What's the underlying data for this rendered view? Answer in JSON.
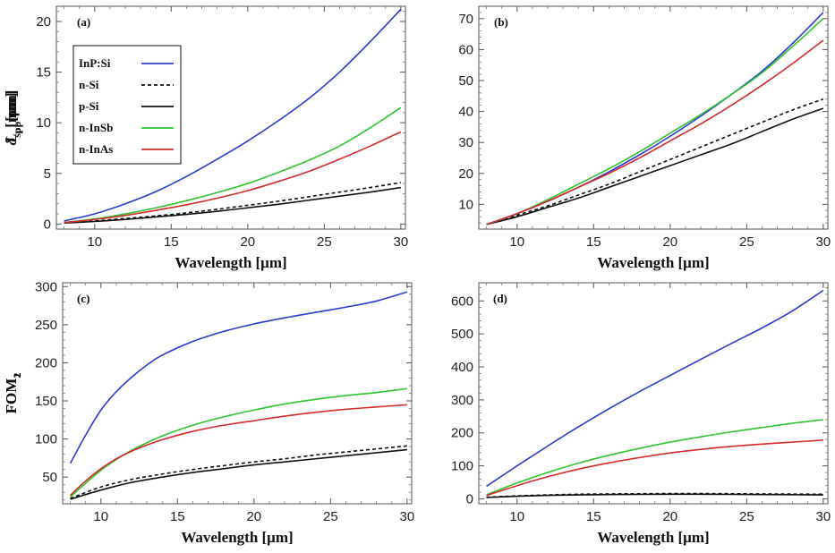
{
  "chart_data": [
    {
      "type": "line",
      "panel_label": "(a)",
      "ylabel": "L_p[mm]",
      "xlabel": "Wavelength [μm]",
      "xlim": [
        7.5,
        30.3
      ],
      "ylim": [
        -0.5,
        21.5
      ],
      "xticks": [
        10,
        15,
        20,
        25,
        30
      ],
      "yticks": [
        0,
        5,
        10,
        15,
        20
      ],
      "legend": "top-left",
      "series": [
        {
          "name": "InP:Si",
          "color": "#2b3bd0",
          "dash": false,
          "x": [
            8,
            10,
            12,
            14,
            16,
            18,
            20,
            22,
            24,
            26,
            28,
            30
          ],
          "y": [
            0.3,
            1.0,
            2.0,
            3.2,
            4.7,
            6.4,
            8.2,
            10.2,
            12.4,
            15.0,
            18.0,
            21.2
          ]
        },
        {
          "name": "n-Si",
          "color": "#111111",
          "dash": true,
          "x": [
            8,
            10,
            12,
            14,
            16,
            18,
            20,
            22,
            24,
            26,
            28,
            30
          ],
          "y": [
            0.1,
            0.3,
            0.55,
            0.8,
            1.1,
            1.45,
            1.85,
            2.25,
            2.7,
            3.15,
            3.6,
            4.1
          ]
        },
        {
          "name": "p-Si",
          "color": "#111111",
          "dash": false,
          "x": [
            8,
            10,
            12,
            14,
            16,
            18,
            20,
            22,
            24,
            26,
            28,
            30
          ],
          "y": [
            0.1,
            0.25,
            0.45,
            0.7,
            0.95,
            1.25,
            1.6,
            1.95,
            2.35,
            2.75,
            3.15,
            3.6
          ]
        },
        {
          "name": "n-InSb",
          "color": "#2ec42e",
          "dash": false,
          "x": [
            8,
            10,
            12,
            14,
            16,
            18,
            20,
            22,
            24,
            26,
            28,
            30
          ],
          "y": [
            0.15,
            0.5,
            1.0,
            1.6,
            2.3,
            3.1,
            4.0,
            5.1,
            6.3,
            7.7,
            9.5,
            11.5
          ]
        },
        {
          "name": "n-InAs",
          "color": "#d42a2a",
          "dash": false,
          "x": [
            8,
            10,
            12,
            14,
            16,
            18,
            20,
            22,
            24,
            26,
            28,
            30
          ],
          "y": [
            0.15,
            0.45,
            0.85,
            1.35,
            1.9,
            2.55,
            3.3,
            4.2,
            5.2,
            6.4,
            7.7,
            9.1
          ]
        }
      ]
    },
    {
      "type": "line",
      "panel_label": "(b)",
      "ylabel": "δ_spp[μm]",
      "xlabel": "Wavelength [μm]",
      "xlim": [
        7.5,
        30.3
      ],
      "ylim": [
        2,
        74
      ],
      "xticks": [
        10,
        15,
        20,
        25,
        30
      ],
      "yticks": [
        10,
        20,
        30,
        40,
        50,
        60,
        70
      ],
      "series": [
        {
          "name": "InP:Si",
          "color": "#2b3bd0",
          "dash": false,
          "x": [
            8,
            10,
            12,
            14,
            16,
            18,
            20,
            22,
            24,
            26,
            28,
            30
          ],
          "y": [
            3.5,
            7,
            11,
            15.5,
            20.5,
            26,
            32,
            38.5,
            45.5,
            53,
            62,
            72
          ]
        },
        {
          "name": "n-Si",
          "color": "#111111",
          "dash": true,
          "x": [
            8,
            10,
            12,
            14,
            16,
            18,
            20,
            22,
            24,
            26,
            28,
            30
          ],
          "y": [
            3.5,
            6.5,
            9.5,
            13,
            16.5,
            20.5,
            24.5,
            28.5,
            32.5,
            36.5,
            40.5,
            44
          ]
        },
        {
          "name": "p-Si",
          "color": "#111111",
          "dash": false,
          "x": [
            8,
            10,
            12,
            14,
            16,
            18,
            20,
            22,
            24,
            26,
            28,
            30
          ],
          "y": [
            3.5,
            6,
            9,
            12,
            15.5,
            19,
            22.5,
            26,
            29.5,
            33.5,
            37.5,
            41
          ]
        },
        {
          "name": "n-InSb",
          "color": "#2ec42e",
          "dash": false,
          "x": [
            8,
            10,
            12,
            14,
            16,
            18,
            20,
            22,
            24,
            26,
            28,
            30
          ],
          "y": [
            3.5,
            7,
            11.5,
            16.5,
            21.5,
            27,
            33,
            39,
            45.5,
            52.5,
            61,
            70
          ]
        },
        {
          "name": "n-InAs",
          "color": "#d42a2a",
          "dash": false,
          "x": [
            8,
            10,
            12,
            14,
            16,
            18,
            20,
            22,
            24,
            26,
            28,
            30
          ],
          "y": [
            3.5,
            7,
            11,
            15.5,
            20,
            25,
            30.5,
            36,
            42,
            48.5,
            55.5,
            63
          ]
        }
      ]
    },
    {
      "type": "line",
      "panel_label": "(c)",
      "ylabel": "FOM_1",
      "xlabel": "Wavelength [μm]",
      "xlim": [
        7.5,
        30.3
      ],
      "ylim": [
        15,
        305
      ],
      "xticks": [
        10,
        15,
        20,
        25,
        30
      ],
      "yticks": [
        50,
        100,
        150,
        200,
        250,
        300
      ],
      "series": [
        {
          "name": "InP:Si",
          "color": "#2b3bd0",
          "dash": false,
          "x": [
            8,
            9,
            10,
            11,
            12,
            13,
            14,
            16,
            18,
            20,
            22,
            24,
            26,
            28,
            30
          ],
          "y": [
            68,
            105,
            138,
            162,
            181,
            197,
            210,
            228,
            241,
            251,
            259,
            266,
            273,
            281,
            293
          ]
        },
        {
          "name": "n-Si",
          "color": "#111111",
          "dash": true,
          "x": [
            8,
            10,
            12,
            14,
            16,
            18,
            20,
            22,
            24,
            26,
            28,
            30
          ],
          "y": [
            22,
            37,
            47,
            54,
            60,
            65,
            70,
            74,
            79,
            83,
            87,
            91
          ]
        },
        {
          "name": "p-Si",
          "color": "#111111",
          "dash": false,
          "x": [
            8,
            10,
            12,
            14,
            16,
            18,
            20,
            22,
            24,
            26,
            28,
            30
          ],
          "y": [
            21,
            33,
            43,
            50,
            56,
            61,
            66,
            70,
            74,
            78,
            82,
            86
          ]
        },
        {
          "name": "n-InSb",
          "color": "#2ec42e",
          "dash": false,
          "x": [
            8,
            9,
            10,
            11,
            12,
            13,
            14,
            16,
            18,
            20,
            22,
            24,
            26,
            28,
            30
          ],
          "y": [
            24,
            42,
            59,
            73,
            85,
            95,
            104,
            118,
            129,
            138,
            146,
            152,
            157,
            161,
            166
          ]
        },
        {
          "name": "n-InAs",
          "color": "#d42a2a",
          "dash": false,
          "x": [
            8,
            9,
            10,
            11,
            12,
            13,
            14,
            16,
            18,
            20,
            22,
            24,
            26,
            28,
            30
          ],
          "y": [
            26,
            45,
            61,
            74,
            84,
            92,
            99,
            110,
            118,
            124,
            130,
            135,
            139,
            142,
            145
          ]
        }
      ]
    },
    {
      "type": "line",
      "panel_label": "(d)",
      "ylabel": "FOM_2",
      "xlabel": "Wavelength [μm]",
      "xlim": [
        7.5,
        30.3
      ],
      "ylim": [
        -15,
        655
      ],
      "xticks": [
        10,
        15,
        20,
        25,
        30
      ],
      "yticks": [
        0,
        100,
        200,
        300,
        400,
        500,
        600
      ],
      "series": [
        {
          "name": "InP:Si",
          "color": "#2b3bd0",
          "dash": false,
          "x": [
            8,
            10,
            12,
            14,
            16,
            18,
            20,
            22,
            24,
            26,
            28,
            30
          ],
          "y": [
            38,
            100,
            160,
            218,
            273,
            325,
            374,
            423,
            471,
            518,
            570,
            632
          ]
        },
        {
          "name": "n-Si",
          "color": "#111111",
          "dash": true,
          "x": [
            8,
            10,
            12,
            14,
            16,
            18,
            20,
            22,
            24,
            26,
            28,
            30
          ],
          "y": [
            5,
            9,
            12,
            14,
            15,
            15.5,
            16,
            16,
            15.5,
            15,
            14.5,
            14
          ]
        },
        {
          "name": "p-Si",
          "color": "#111111",
          "dash": false,
          "x": [
            8,
            10,
            12,
            14,
            16,
            18,
            20,
            22,
            24,
            26,
            28,
            30
          ],
          "y": [
            4,
            8,
            10.5,
            12,
            13,
            13.5,
            14,
            14,
            13.5,
            13,
            12.5,
            12
          ]
        },
        {
          "name": "n-InSb",
          "color": "#2ec42e",
          "dash": false,
          "x": [
            8,
            10,
            12,
            14,
            16,
            18,
            20,
            22,
            24,
            26,
            28,
            30
          ],
          "y": [
            12,
            48,
            80,
            108,
            132,
            153,
            172,
            188,
            203,
            216,
            229,
            240
          ]
        },
        {
          "name": "n-InAs",
          "color": "#d42a2a",
          "dash": false,
          "x": [
            8,
            10,
            12,
            14,
            16,
            18,
            20,
            22,
            24,
            26,
            28,
            30
          ],
          "y": [
            10,
            40,
            67,
            90,
            109,
            125,
            139,
            150,
            159,
            166,
            172,
            178
          ]
        }
      ]
    }
  ]
}
